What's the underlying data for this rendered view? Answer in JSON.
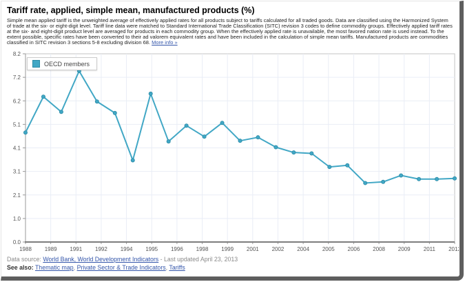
{
  "header": {
    "title": "Tariff rate, applied, simple mean, manufactured products (%)",
    "description": "Simple mean applied tariff is the unweighted average of effectively applied rates for all products subject to tariffs calculated for all traded goods. Data are classified using the Harmonized System of trade at the six- or eight-digit level. Tariff line data were matched to Standard International Trade Classification (SITC) revision 3 codes to define commodity groups. Effectively applied tariff rates at the six- and eight-digit product level are averaged for products in each commodity group. When the effectively applied rate is unavailable, the most favored nation rate is used instead. To the extent possible, specific rates have been converted to their ad valorem equivalent rates and have been included in the calculation of simple mean tariffs. Manufactured products are commodities classified in SITC revision 3 sections 5-8 excluding division 68.",
    "more_info_label": "More info »"
  },
  "chart_data": {
    "type": "line",
    "title": "Tariff rate, applied, simple mean, manufactured products (%)",
    "xlabel": "",
    "ylabel": "",
    "grid": true,
    "legend_position": "top-left",
    "ylim": [
      0,
      8.2
    ],
    "y_tick_values": [
      8.2,
      7.175,
      6.15,
      5.125,
      4.1,
      3.075,
      2.05,
      1.025,
      0
    ],
    "y_tick_labels": [
      "8.2",
      "7.2",
      "6.2",
      "5.1",
      "4.1",
      "3.1",
      "2.1",
      "1.0",
      "0.0"
    ],
    "x": [
      1988,
      1989,
      1990,
      1991,
      1992,
      1993,
      1994,
      1995,
      1996,
      1997,
      1998,
      1999,
      2000,
      2001,
      2002,
      2003,
      2004,
      2005,
      2006,
      2007,
      2008,
      2009,
      2010,
      2011,
      2012
    ],
    "x_tick_labels": [
      "1988",
      "1989",
      "1991",
      "1992",
      "1994",
      "1995",
      "1996",
      "1998",
      "1999",
      "2001",
      "2002",
      "2004",
      "2005",
      "2006",
      "2008",
      "2009",
      "2011",
      "2012"
    ],
    "series": [
      {
        "name": "OECD members",
        "color": "#41a7c5",
        "marker_edge_color": "#2c8ba6",
        "values": [
          4.77,
          6.33,
          5.67,
          7.45,
          6.12,
          5.62,
          3.56,
          6.46,
          4.38,
          5.07,
          4.59,
          5.19,
          4.41,
          4.56,
          4.13,
          3.9,
          3.86,
          3.27,
          3.34,
          2.57,
          2.62,
          2.9,
          2.74,
          2.74,
          2.77
        ]
      }
    ]
  },
  "footer": {
    "data_source_label": "Data source:",
    "data_source_link": "World Bank, World Development Indicators",
    "last_updated": "- Last updated April 23, 2013",
    "see_also_label": "See also:",
    "see_also_links": [
      "Thematic map",
      "Private Sector & Trade Indicators",
      "Tariffs"
    ],
    "separator": ","
  }
}
